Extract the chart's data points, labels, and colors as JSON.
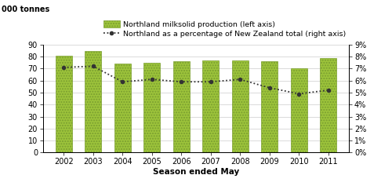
{
  "years": [
    2002,
    2003,
    2004,
    2005,
    2006,
    2007,
    2008,
    2009,
    2010,
    2011
  ],
  "bar_values": [
    81,
    85,
    74,
    75,
    76,
    77,
    77,
    76,
    70,
    79
  ],
  "line_values": [
    7.1,
    7.2,
    5.9,
    6.1,
    5.9,
    5.9,
    6.1,
    5.4,
    4.9,
    5.2
  ],
  "bar_color": "#9dc43b",
  "bar_edge_color": "#7a9e30",
  "bar_hatch": ".....",
  "line_color": "#333333",
  "ylim_left": [
    0,
    90
  ],
  "ylim_right": [
    0,
    9
  ],
  "yticks_left": [
    0,
    10,
    20,
    30,
    40,
    50,
    60,
    70,
    80,
    90
  ],
  "yticks_right": [
    0,
    1,
    2,
    3,
    4,
    5,
    6,
    7,
    8,
    9
  ],
  "ylabel_left": "000 tonnes",
  "xlabel": "Season ended May",
  "legend_bar": "Northland milksolid production (left axis)",
  "legend_line": "Northland as a percentage of New Zealand total (right axis)",
  "bg_color": "#ffffff",
  "grid_color": "#cccccc",
  "bar_width": 0.55
}
